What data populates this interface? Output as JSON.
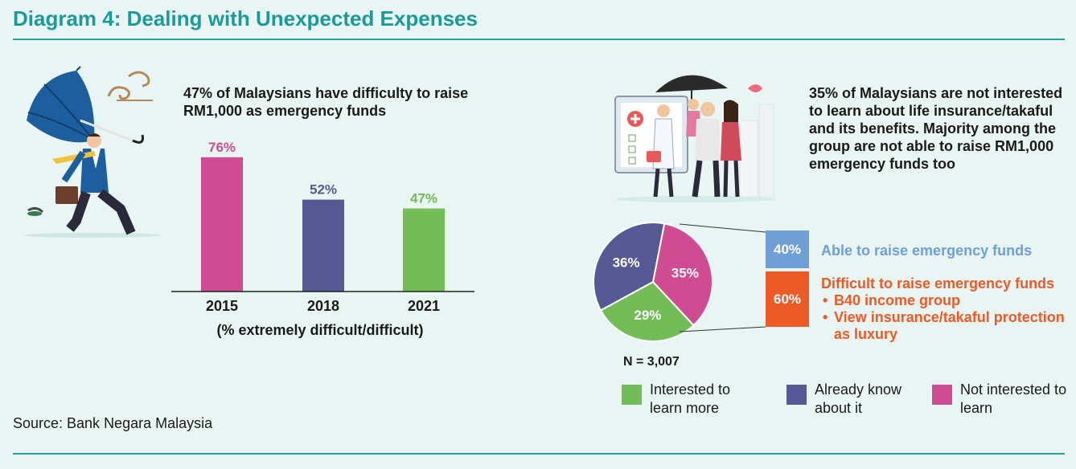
{
  "title": "Diagram 4: Dealing with Unexpected Expenses",
  "source": "Source: Bank Negara Malaysia",
  "left": {
    "headline": "47% of Malaysians have difficulty to  raise RM1,000 as emergency  funds"
  },
  "right": {
    "headline": "35% of Malaysians are not interested to learn about life insurance/takaful and its benefits. Majority among the group are not able to raise RM1,000 emergency funds too",
    "n_label": "N = 3,007",
    "breakdown": {
      "able": {
        "value": "40%",
        "label": "Able to raise emergency funds"
      },
      "difficult": {
        "value": "60%",
        "label": "Difficult to raise emergency funds",
        "bullets": [
          "B40 income group",
          "View insurance/takaful protection as luxury"
        ]
      }
    },
    "legend": [
      {
        "label": "Interested to learn more",
        "color": "#72bd55"
      },
      {
        "label": "Already know about it",
        "color": "#575995"
      },
      {
        "label": "Not interested to learn",
        "color": "#d04c92"
      }
    ]
  },
  "chart_data": [
    {
      "type": "bar",
      "categories": [
        "2015",
        "2018",
        "2021"
      ],
      "values": [
        76,
        52,
        47
      ],
      "data_labels": [
        "76%",
        "52%",
        "47%"
      ],
      "colors": [
        "#d04c92",
        "#575995",
        "#72bd55"
      ],
      "title": "47% of Malaysians have difficulty to  raise RM1,000 as emergency  funds",
      "xlabel": "(% extremely difficult/difficult)",
      "ylabel": "",
      "ylim": [
        0,
        100
      ],
      "grid": false,
      "legend": false
    },
    {
      "type": "pie",
      "categories": [
        "Interested to learn more",
        "Already know about it",
        "Not interested to learn"
      ],
      "values": [
        29,
        36,
        35
      ],
      "data_labels": [
        "29%",
        "36%",
        "35%"
      ],
      "colors": [
        "#72bd55",
        "#575995",
        "#d04c92"
      ],
      "title": "",
      "legend": "bottom"
    }
  ]
}
